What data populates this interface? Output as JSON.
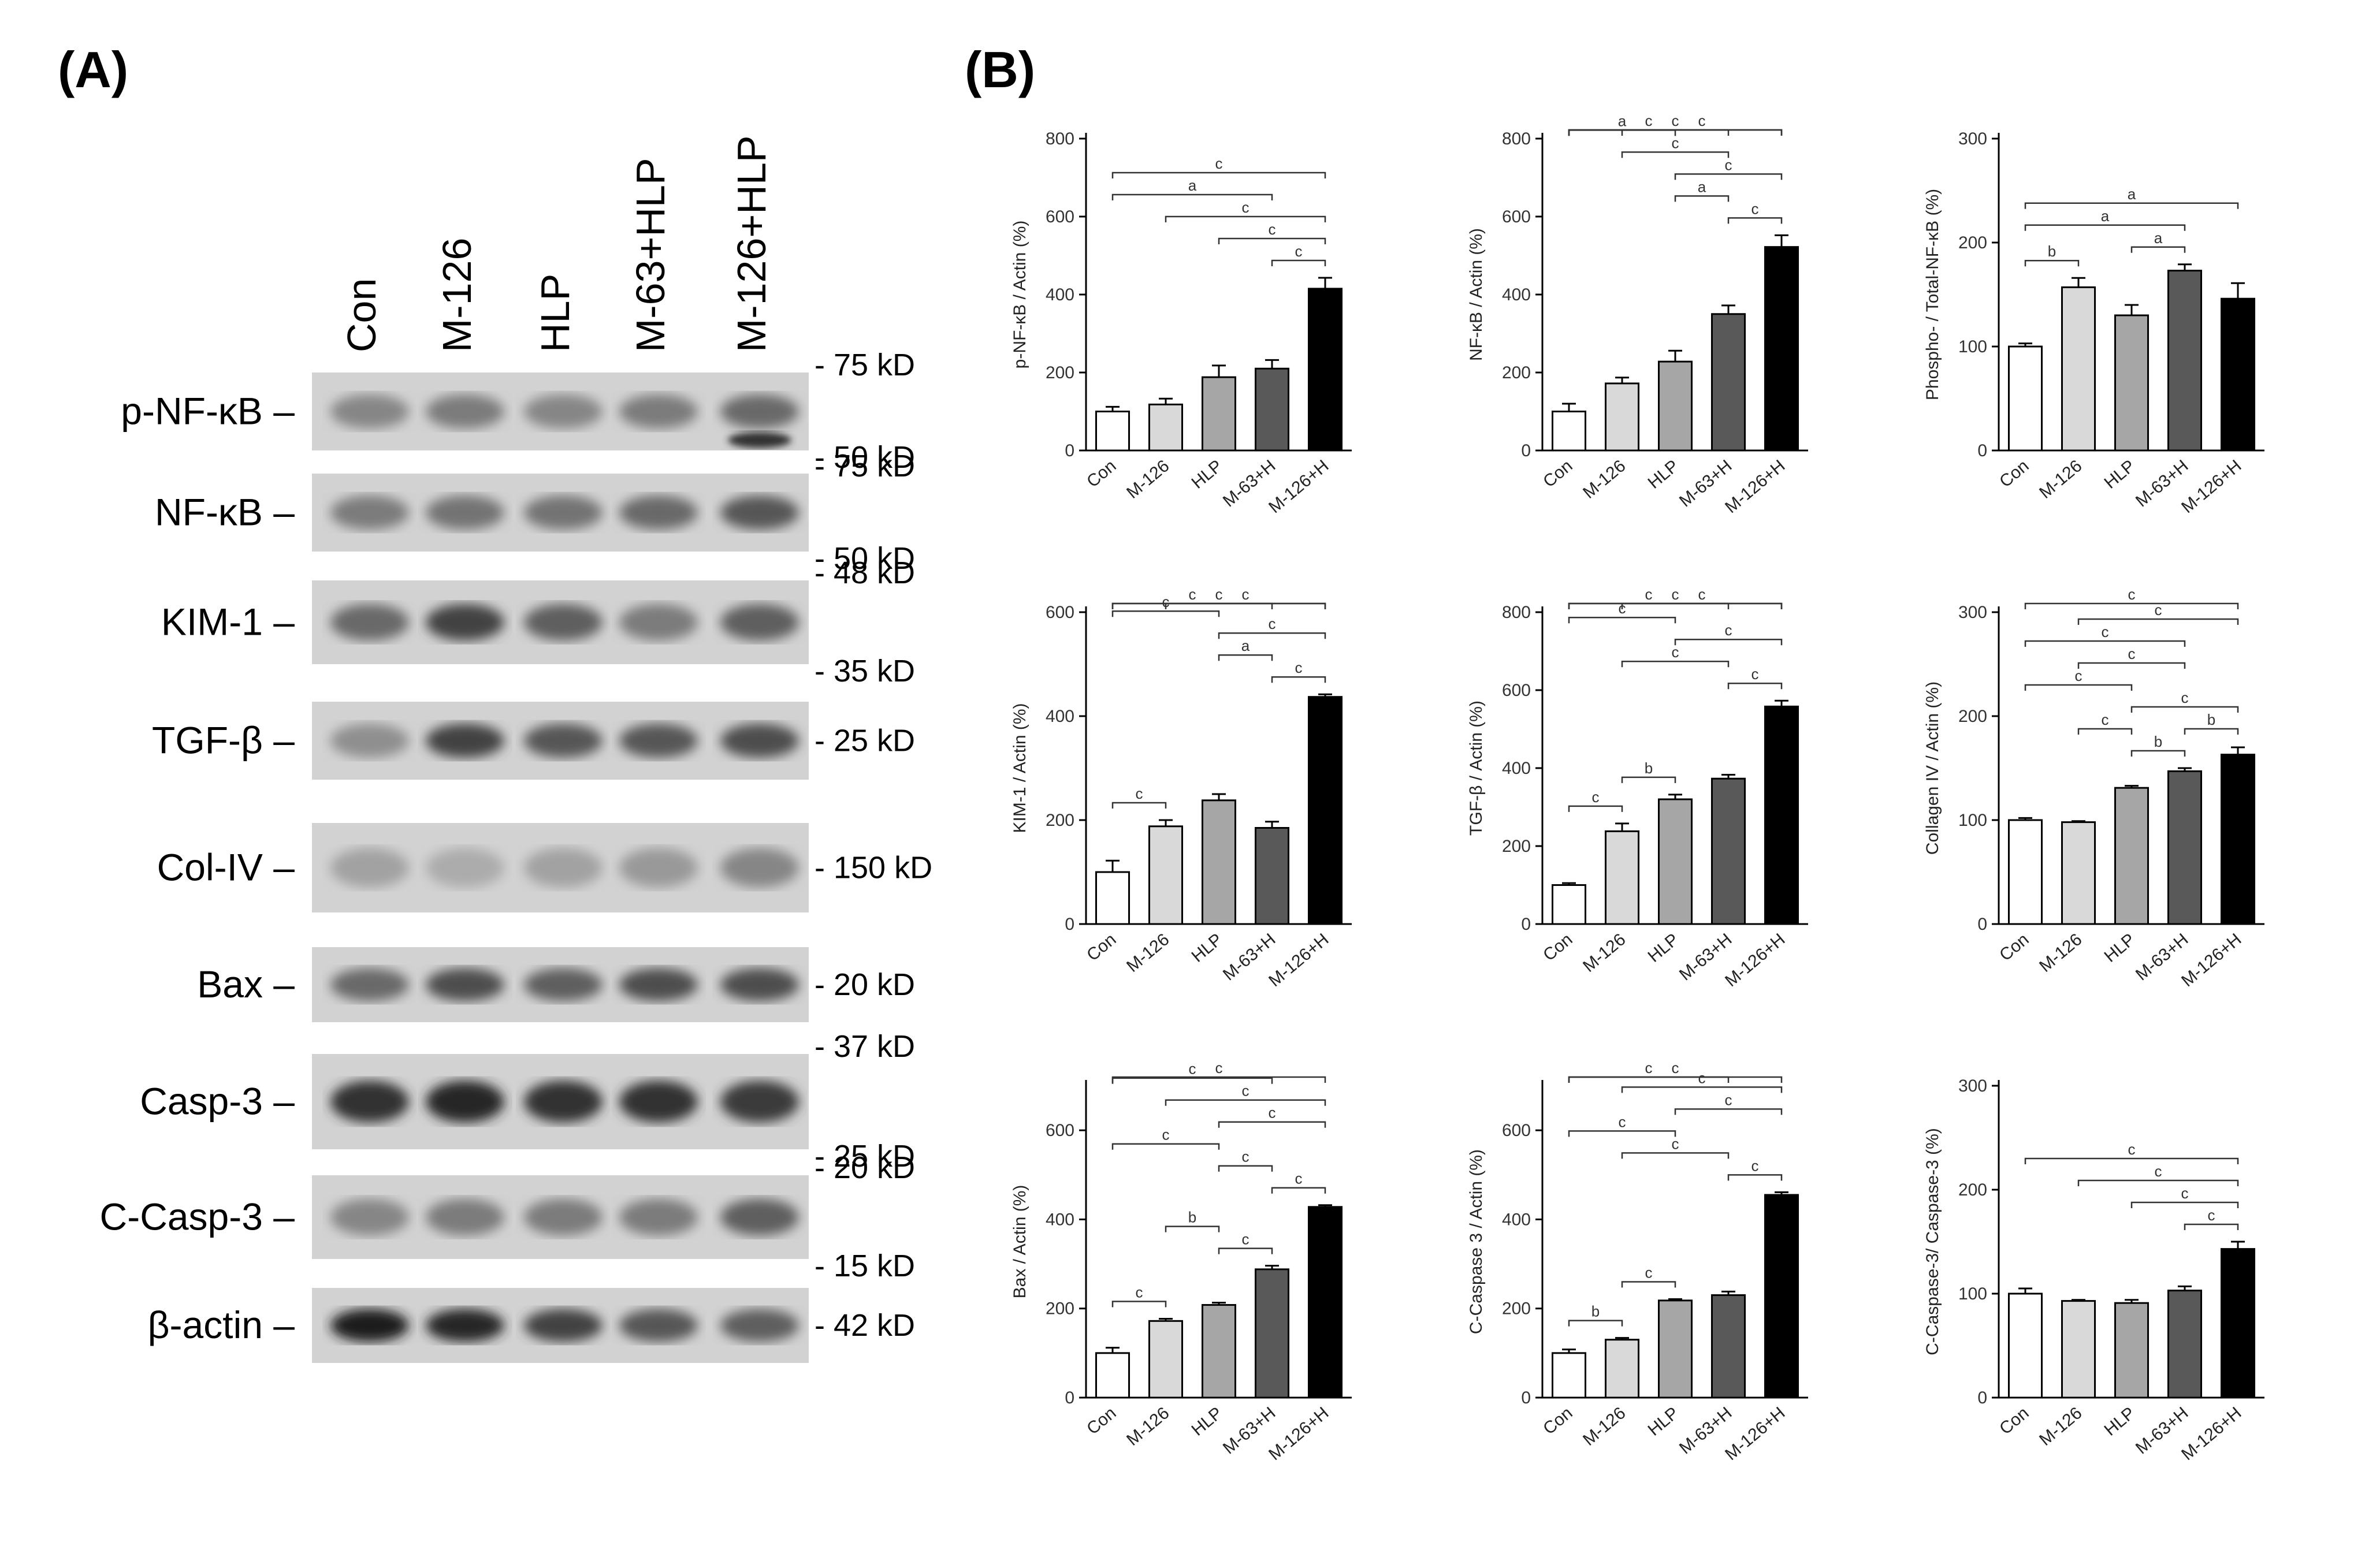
{
  "panel_a": {
    "label": "(A)",
    "lanes": [
      "Con",
      "M-126",
      "HLP",
      "M-63+HLP",
      "M-126+HLP"
    ],
    "blots": [
      {
        "protein": "p-NF-κB –",
        "markers": [
          "- 75 kD",
          "- 50 kD"
        ]
      },
      {
        "protein": "NF-κB –",
        "markers": [
          "- 75 kD",
          "- 50 kD"
        ]
      },
      {
        "protein": "KIM-1 –",
        "markers": [
          "- 48 kD",
          "- 35 kD"
        ]
      },
      {
        "protein": "TGF-β –",
        "markers": [
          "- 25 kD"
        ]
      },
      {
        "protein": "Col-IV –",
        "markers": [
          "- 150 kD"
        ]
      },
      {
        "protein": "Bax –",
        "markers": [
          "- 20 kD"
        ]
      },
      {
        "protein": "Casp-3 –",
        "markers": [
          "- 37 kD",
          "- 25 kD"
        ]
      },
      {
        "protein": "C-Casp-3 –",
        "markers": [
          "- 20 kD",
          "- 15 kD"
        ]
      },
      {
        "protein": "β-actin –",
        "markers": [
          "- 42 kD"
        ]
      }
    ]
  },
  "panel_b": {
    "label": "(B)",
    "colors": [
      "#ffffff",
      "#d9d9d9",
      "#a6a6a6",
      "#595959",
      "#000000"
    ]
  },
  "chart_data": [
    {
      "type": "bar",
      "ylabel": "p-NF-κB / Actin (%)",
      "categories": [
        "Con",
        "M-126",
        "HLP",
        "M-63+H",
        "M-126+H"
      ],
      "values": [
        100,
        118,
        188,
        210,
        415
      ],
      "errors": [
        12,
        15,
        30,
        22,
        28
      ],
      "ylim": [
        0,
        800
      ],
      "yticks": [
        0,
        200,
        400,
        600,
        800
      ],
      "comparisons": [
        {
          "from": 0,
          "to": 4,
          "label": "c"
        },
        {
          "from": 1,
          "to": 4,
          "label": "c"
        },
        {
          "from": 2,
          "to": 4,
          "label": "c"
        },
        {
          "from": 3,
          "to": 4,
          "label": "c"
        },
        {
          "from": 0,
          "to": 3,
          "label": "a"
        }
      ]
    },
    {
      "type": "bar",
      "ylabel": "NF-κB / Actin (%)",
      "categories": [
        "Con",
        "M-126",
        "HLP",
        "M-63+H",
        "M-126+H"
      ],
      "values": [
        100,
        172,
        228,
        350,
        522
      ],
      "errors": [
        20,
        15,
        28,
        22,
        30
      ],
      "ylim": [
        0,
        800
      ],
      "yticks": [
        0,
        200,
        400,
        600,
        800
      ],
      "comparisons": [
        {
          "from": 0,
          "to": 4,
          "label": "c"
        },
        {
          "from": 1,
          "to": 4,
          "label": "c"
        },
        {
          "from": 2,
          "to": 4,
          "label": "c"
        },
        {
          "from": 3,
          "to": 4,
          "label": "c"
        },
        {
          "from": 0,
          "to": 3,
          "label": "c"
        },
        {
          "from": 1,
          "to": 3,
          "label": "c"
        },
        {
          "from": 2,
          "to": 3,
          "label": "a"
        },
        {
          "from": 0,
          "to": 2,
          "label": "a"
        }
      ]
    },
    {
      "type": "bar",
      "ylabel": "Phospho- / Total-NF-κB (%)",
      "categories": [
        "Con",
        "M-126",
        "HLP",
        "M-63+H",
        "M-126+H"
      ],
      "values": [
        100,
        157,
        130,
        173,
        146
      ],
      "errors": [
        3,
        9,
        10,
        6,
        15
      ],
      "ylim": [
        0,
        300
      ],
      "yticks": [
        0,
        100,
        200,
        300
      ],
      "comparisons": [
        {
          "from": 0,
          "to": 4,
          "label": "a"
        },
        {
          "from": 0,
          "to": 3,
          "label": "a"
        },
        {
          "from": 0,
          "to": 1,
          "label": "b"
        },
        {
          "from": 2,
          "to": 3,
          "label": "a"
        }
      ]
    },
    {
      "type": "bar",
      "ylabel": "KIM-1 / Actin (%)",
      "categories": [
        "Con",
        "M-126",
        "HLP",
        "M-63+H",
        "M-126+H"
      ],
      "values": [
        100,
        188,
        238,
        185,
        437
      ],
      "errors": [
        22,
        12,
        12,
        12,
        5
      ],
      "ylim": [
        0,
        600
      ],
      "yticks": [
        0,
        200,
        400,
        600
      ],
      "comparisons": [
        {
          "from": 0,
          "to": 4,
          "label": "c"
        },
        {
          "from": 1,
          "to": 4,
          "label": "c"
        },
        {
          "from": 2,
          "to": 4,
          "label": "c"
        },
        {
          "from": 3,
          "to": 4,
          "label": "c"
        },
        {
          "from": 0,
          "to": 3,
          "label": "c"
        },
        {
          "from": 0,
          "to": 2,
          "label": "c"
        },
        {
          "from": 2,
          "to": 3,
          "label": "a"
        },
        {
          "from": 0,
          "to": 1,
          "label": "c"
        }
      ]
    },
    {
      "type": "bar",
      "ylabel": "TGF-β / Actin (%)",
      "categories": [
        "Con",
        "M-126",
        "HLP",
        "M-63+H",
        "M-126+H"
      ],
      "values": [
        100,
        238,
        320,
        373,
        558
      ],
      "errors": [
        5,
        20,
        12,
        10,
        15
      ],
      "ylim": [
        0,
        800
      ],
      "yticks": [
        0,
        200,
        400,
        600,
        800
      ],
      "comparisons": [
        {
          "from": 0,
          "to": 4,
          "label": "c"
        },
        {
          "from": 1,
          "to": 4,
          "label": "c"
        },
        {
          "from": 1,
          "to": 3,
          "label": "c"
        },
        {
          "from": 3,
          "to": 4,
          "label": "c"
        },
        {
          "from": 2,
          "to": 4,
          "label": "c"
        },
        {
          "from": 0,
          "to": 3,
          "label": "c"
        },
        {
          "from": 0,
          "to": 2,
          "label": "c"
        },
        {
          "from": 0,
          "to": 1,
          "label": "c"
        },
        {
          "from": 1,
          "to": 2,
          "label": "b"
        }
      ]
    },
    {
      "type": "bar",
      "ylabel": "Collagen IV / Actin (%)",
      "categories": [
        "Con",
        "M-126",
        "HLP",
        "M-63+H",
        "M-126+H"
      ],
      "values": [
        100,
        98,
        131,
        147,
        163
      ],
      "errors": [
        2,
        1,
        2,
        3,
        7
      ],
      "ylim": [
        0,
        300
      ],
      "yticks": [
        0,
        100,
        200,
        300
      ],
      "comparisons": [
        {
          "from": 0,
          "to": 4,
          "label": "c"
        },
        {
          "from": 0,
          "to": 3,
          "label": "c"
        },
        {
          "from": 2,
          "to": 4,
          "label": "c"
        },
        {
          "from": 0,
          "to": 2,
          "label": "c"
        },
        {
          "from": 2,
          "to": 3,
          "label": "b"
        },
        {
          "from": 3,
          "to": 4,
          "label": "b"
        },
        {
          "from": 1,
          "to": 4,
          "label": "c"
        },
        {
          "from": 1,
          "to": 3,
          "label": "c"
        },
        {
          "from": 1,
          "to": 2,
          "label": "c"
        }
      ]
    },
    {
      "type": "bar",
      "ylabel": "Bax / Actin (%)",
      "categories": [
        "Con",
        "M-126",
        "HLP",
        "M-63+H",
        "M-126+H"
      ],
      "values": [
        100,
        172,
        208,
        288,
        428
      ],
      "errors": [
        12,
        5,
        5,
        8,
        4
      ],
      "ylim": [
        0,
        700
      ],
      "yticks": [
        0,
        200,
        400,
        600
      ],
      "comparisons": [
        {
          "from": 0,
          "to": 4,
          "label": "c"
        },
        {
          "from": 1,
          "to": 4,
          "label": "c"
        },
        {
          "from": 2,
          "to": 3,
          "label": "c"
        },
        {
          "from": 3,
          "to": 4,
          "label": "c"
        },
        {
          "from": 0,
          "to": 2,
          "label": "c"
        },
        {
          "from": 2,
          "to": 4,
          "label": "c"
        },
        {
          "from": 0,
          "to": 3,
          "label": "c"
        },
        {
          "from": 0,
          "to": 1,
          "label": "c"
        },
        {
          "from": 1,
          "to": 2,
          "label": "b"
        },
        {
          "from": 2,
          "to": 3,
          "label": "c"
        }
      ]
    },
    {
      "type": "bar",
      "ylabel": "C-Caspase 3 / Actin (%)",
      "categories": [
        "Con",
        "M-126",
        "HLP",
        "M-63+H",
        "M-126+H"
      ],
      "values": [
        100,
        130,
        218,
        230,
        455
      ],
      "errors": [
        8,
        4,
        3,
        8,
        6
      ],
      "ylim": [
        0,
        700
      ],
      "yticks": [
        0,
        200,
        400,
        600
      ],
      "comparisons": [
        {
          "from": 0,
          "to": 4,
          "label": "c"
        },
        {
          "from": 1,
          "to": 4,
          "label": "c"
        },
        {
          "from": 1,
          "to": 3,
          "label": "c"
        },
        {
          "from": 3,
          "to": 4,
          "label": "c"
        },
        {
          "from": 0,
          "to": 2,
          "label": "c"
        },
        {
          "from": 2,
          "to": 4,
          "label": "c"
        },
        {
          "from": 0,
          "to": 3,
          "label": "c"
        },
        {
          "from": 0,
          "to": 1,
          "label": "b"
        },
        {
          "from": 1,
          "to": 2,
          "label": "c"
        }
      ]
    },
    {
      "type": "bar",
      "ylabel": "C-Caspase-3/ Caspase-3 (%)",
      "categories": [
        "Con",
        "M-126",
        "HLP",
        "M-63+H",
        "M-126+H"
      ],
      "values": [
        100,
        93,
        91,
        103,
        143
      ],
      "errors": [
        5,
        1,
        3,
        4,
        7
      ],
      "ylim": [
        0,
        300
      ],
      "yticks": [
        0,
        100,
        200,
        300
      ],
      "comparisons": [
        {
          "from": 0,
          "to": 4,
          "label": "c"
        },
        {
          "from": 1,
          "to": 4,
          "label": "c"
        },
        {
          "from": 2,
          "to": 4,
          "label": "c"
        },
        {
          "from": 3,
          "to": 4,
          "label": "c"
        }
      ]
    }
  ]
}
